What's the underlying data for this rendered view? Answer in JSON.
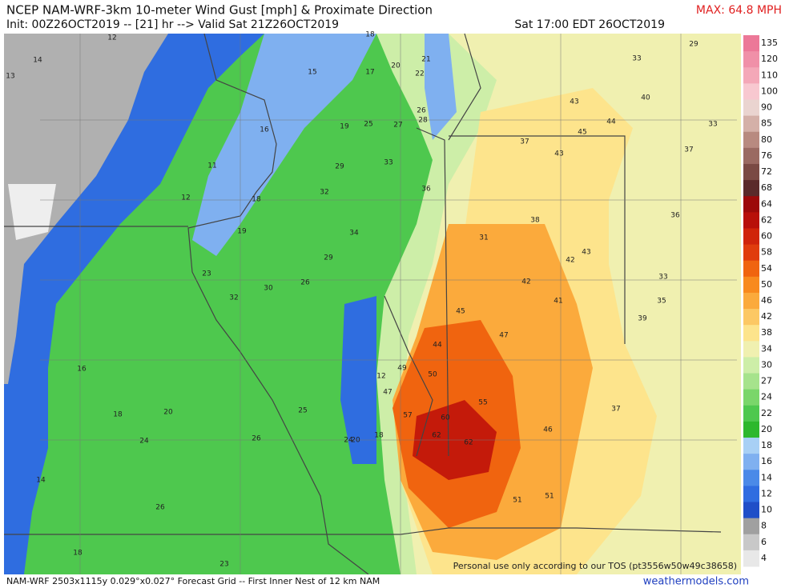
{
  "header": {
    "title": "NCEP NAM-WRF-3km 10-meter Wind Gust [mph] & Proximate Direction",
    "max": "MAX: 64.8 MPH",
    "init": "Init: 00Z26OCT2019 -- [21] hr --> Valid Sat 21Z26OCT2019",
    "valid": "Sat 17:00 EDT 26OCT2019"
  },
  "map": {
    "labels": [
      14,
      13,
      12,
      15,
      17,
      18,
      20,
      22,
      21,
      26,
      28,
      25,
      27,
      19,
      16,
      11,
      12,
      18,
      19,
      23,
      32,
      30,
      26,
      29,
      34,
      32,
      29,
      33,
      36,
      31,
      38,
      42,
      43,
      42,
      41,
      45,
      47,
      44,
      49,
      50,
      47,
      57,
      60,
      55,
      62,
      62,
      51,
      51,
      46,
      37,
      39,
      35,
      33,
      36,
      37,
      33,
      29,
      33,
      40,
      43,
      44,
      45,
      37,
      43,
      20,
      24,
      25,
      26,
      24,
      20,
      18,
      16,
      14,
      26,
      18,
      23,
      12,
      18
    ],
    "watermark": "Personal use only according to our TOS (pt3556w50w49c38658)"
  },
  "colorbar": {
    "levels": [
      135,
      120,
      110,
      100,
      90,
      85,
      80,
      76,
      72,
      68,
      64,
      62,
      60,
      58,
      54,
      50,
      46,
      42,
      38,
      34,
      30,
      27,
      24,
      22,
      20,
      18,
      16,
      14,
      12,
      10,
      8,
      6,
      4
    ],
    "colors": [
      "#ec7898",
      "#f090a8",
      "#f4a8b8",
      "#f8c8d0",
      "#ead4d0",
      "#d4b0a8",
      "#b88a80",
      "#9a6a62",
      "#7a4a44",
      "#5a2a2a",
      "#9c0a0a",
      "#b8100a",
      "#d0240a",
      "#e03c0c",
      "#f0640f",
      "#f88a1e",
      "#fbaa3c",
      "#fcc864",
      "#fde48c",
      "#f0f0b0",
      "#cdeea8",
      "#a6e38c",
      "#7ad66a",
      "#4ec84e",
      "#2db82d",
      "#a8d0f5",
      "#7fb0f0",
      "#4a8ae8",
      "#2f6de0",
      "#1f4fc8",
      "#a0a0a0",
      "#c8c8c8",
      "#e8e8e8"
    ]
  },
  "footer": {
    "left": "NAM-WRF 2503x1115y 0.029°x0.027° Forecast Grid -- First Inner Nest of 12 km NAM",
    "right": "weathermodels.com"
  }
}
